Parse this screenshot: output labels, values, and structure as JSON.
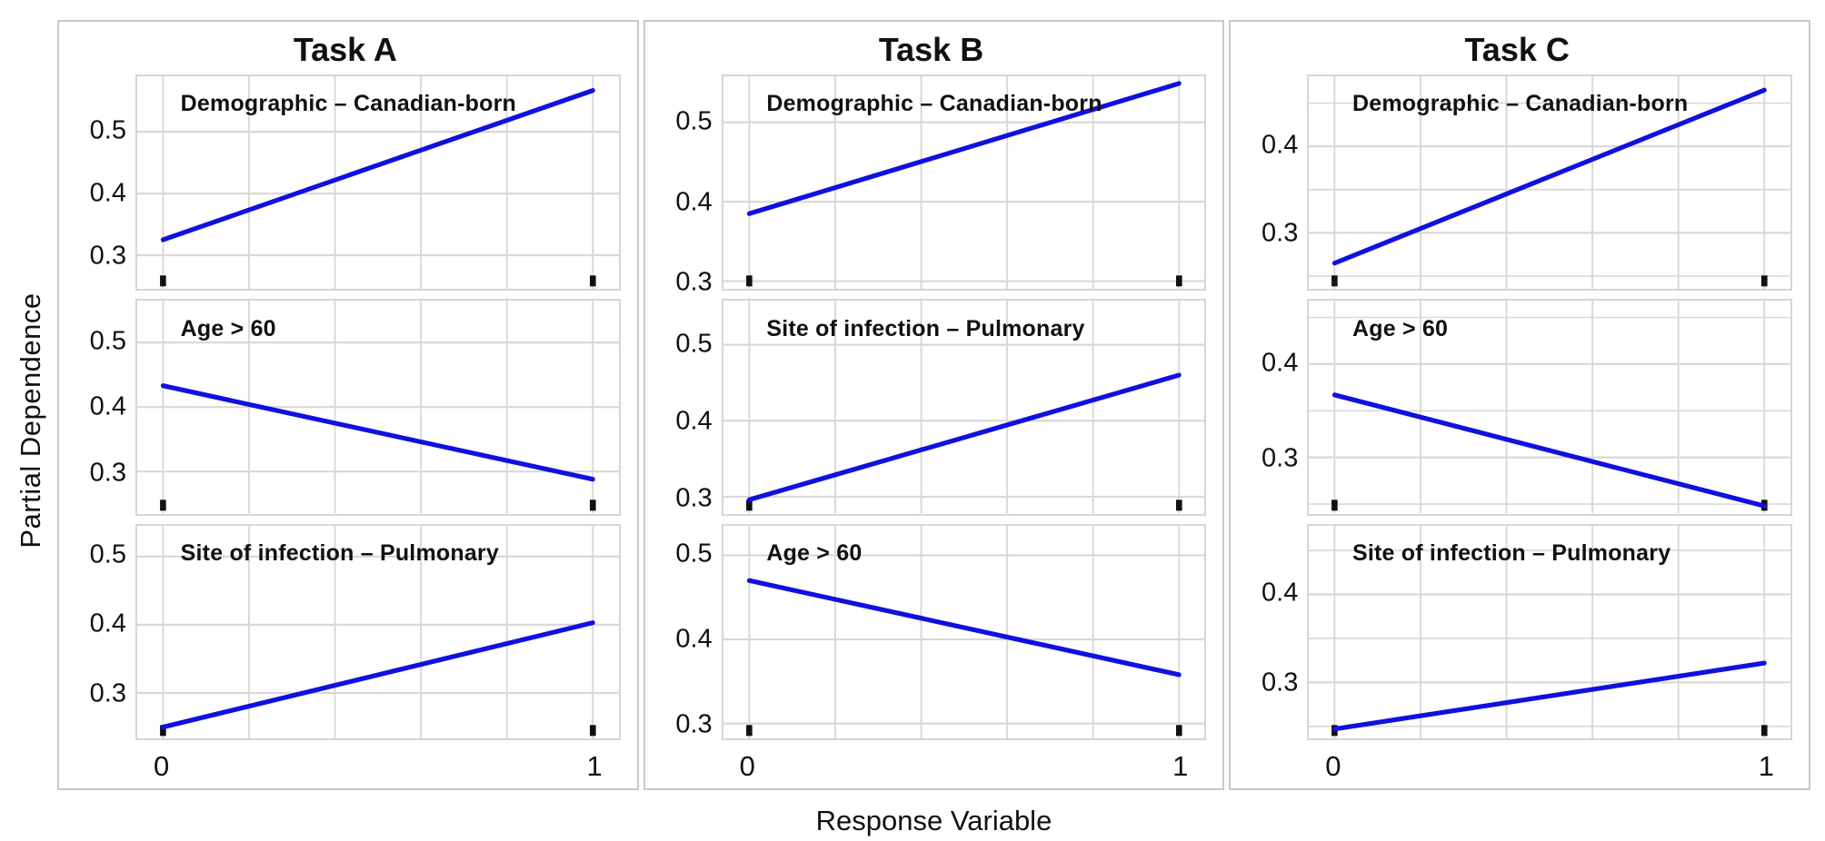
{
  "figure": {
    "y_axis_label": "Partial Dependence",
    "x_axis_label": "Response Variable",
    "line_color": "#1010e0",
    "grid_color": "#d8d8d8",
    "rug_color": "#111111",
    "panel_border_color": "#d6d6d6",
    "column_border_color": "#c9c9c9"
  },
  "chart_data": [
    {
      "type": "line",
      "task": "Task A",
      "xlabel_ticks": [
        "0",
        "1"
      ],
      "x_gridlines": [
        0,
        0.2,
        0.4,
        0.6,
        0.8,
        1
      ],
      "panels": [
        {
          "label": "Demographic – Canadian-born",
          "x": [
            0,
            1
          ],
          "y": [
            0.325,
            0.567
          ],
          "yticks": [
            0.3,
            0.4,
            0.5
          ],
          "minor_yticks": [],
          "ylim": [
            0.245,
            0.59
          ],
          "rug_x": [
            0,
            1
          ]
        },
        {
          "label": "Age > 60",
          "x": [
            0,
            1
          ],
          "y": [
            0.433,
            0.288
          ],
          "yticks": [
            0.3,
            0.4,
            0.5
          ],
          "minor_yticks": [],
          "ylim": [
            0.235,
            0.565
          ],
          "rug_x": [
            0,
            1
          ]
        },
        {
          "label": "Site of infection – Pulmonary",
          "x": [
            0,
            1
          ],
          "y": [
            0.25,
            0.403
          ],
          "yticks": [
            0.3,
            0.4,
            0.5
          ],
          "minor_yticks": [],
          "ylim": [
            0.233,
            0.545
          ],
          "rug_x": [
            0,
            1
          ]
        }
      ]
    },
    {
      "type": "line",
      "task": "Task B",
      "xlabel_ticks": [
        "0",
        "1"
      ],
      "x_gridlines": [
        0,
        0.2,
        0.4,
        0.6,
        0.8,
        1
      ],
      "panels": [
        {
          "label": "Demographic – Canadian-born",
          "x": [
            0,
            1
          ],
          "y": [
            0.385,
            0.549
          ],
          "yticks": [
            0.3,
            0.4,
            0.5
          ],
          "minor_yticks": [],
          "ylim": [
            0.29,
            0.558
          ],
          "rug_x": [
            0,
            1
          ]
        },
        {
          "label": "Site of infection – Pulmonary",
          "x": [
            0,
            1
          ],
          "y": [
            0.296,
            0.46
          ],
          "yticks": [
            0.3,
            0.4,
            0.5
          ],
          "minor_yticks": [],
          "ylim": [
            0.278,
            0.558
          ],
          "rug_x": [
            0,
            1
          ]
        },
        {
          "label": "Age > 60",
          "x": [
            0,
            1
          ],
          "y": [
            0.47,
            0.358
          ],
          "yticks": [
            0.3,
            0.4,
            0.5
          ],
          "minor_yticks": [],
          "ylim": [
            0.282,
            0.535
          ],
          "rug_x": [
            0,
            1
          ]
        }
      ]
    },
    {
      "type": "line",
      "task": "Task C",
      "xlabel_ticks": [
        "0",
        "1"
      ],
      "x_gridlines": [
        0,
        0.2,
        0.4,
        0.6,
        0.8,
        1
      ],
      "panels": [
        {
          "label": "Demographic – Canadian-born",
          "x": [
            0,
            1
          ],
          "y": [
            0.265,
            0.465
          ],
          "yticks": [
            0.3,
            0.4
          ],
          "minor_yticks": [
            0.25,
            0.35,
            0.45
          ],
          "ylim": [
            0.235,
            0.481
          ],
          "rug_x": [
            0,
            1
          ]
        },
        {
          "label": "Age > 60",
          "x": [
            0,
            1
          ],
          "y": [
            0.367,
            0.248
          ],
          "yticks": [
            0.3,
            0.4
          ],
          "minor_yticks": [
            0.25,
            0.35,
            0.45
          ],
          "ylim": [
            0.24,
            0.468
          ],
          "rug_x": [
            0,
            1
          ]
        },
        {
          "label": "Site of infection – Pulmonary",
          "x": [
            0,
            1
          ],
          "y": [
            0.247,
            0.322
          ],
          "yticks": [
            0.3,
            0.4
          ],
          "minor_yticks": [
            0.25,
            0.35,
            0.45
          ],
          "ylim": [
            0.236,
            0.478
          ],
          "rug_x": [
            0,
            1
          ]
        }
      ]
    }
  ]
}
